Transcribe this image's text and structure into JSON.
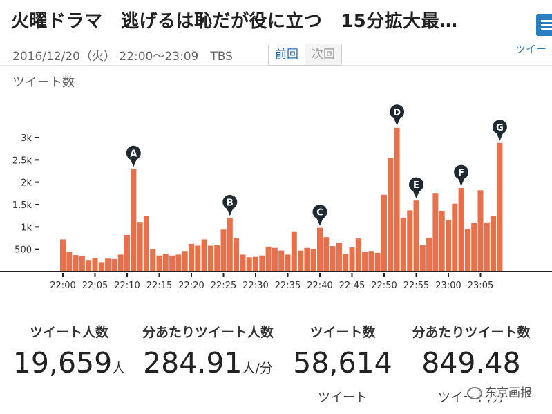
{
  "header": {
    "title": "火曜ドラマ　逃げるは恥だが役に立つ　15分拡大最…",
    "broadcast_info": "2016/12/20（火） 22:00～23:09　TBS",
    "prev_label": "前回",
    "next_label": "次回",
    "side_tab_label": "ツイー",
    "list_icon": "list-icon"
  },
  "chart_data": {
    "type": "bar",
    "title": "ツイート数",
    "color": "#e8704a",
    "y_ticks": [
      "500",
      "1k",
      "1.5k",
      "2k",
      "2.5k",
      "3k"
    ],
    "y_tick_values": [
      500,
      1000,
      1500,
      2000,
      2500,
      3000
    ],
    "ylim": [
      0,
      3500
    ],
    "x_ticks": [
      "22:00",
      "22:05",
      "22:10",
      "22:15",
      "22:20",
      "22:25",
      "22:30",
      "22:35",
      "22:40",
      "22:45",
      "22:50",
      "22:55",
      "23:00",
      "23:05"
    ],
    "x_tick_minutes": [
      0,
      5,
      10,
      15,
      20,
      25,
      30,
      35,
      40,
      45,
      50,
      55,
      60,
      65
    ],
    "values": [
      720,
      450,
      370,
      340,
      260,
      300,
      210,
      290,
      280,
      380,
      820,
      2300,
      1110,
      1250,
      510,
      360,
      400,
      360,
      380,
      460,
      620,
      580,
      720,
      580,
      590,
      940,
      1200,
      750,
      380,
      320,
      330,
      360,
      560,
      530,
      470,
      380,
      900,
      470,
      530,
      510,
      980,
      770,
      570,
      650,
      400,
      540,
      740,
      440,
      460,
      420,
      1720,
      2550,
      3220,
      1190,
      1370,
      1590,
      590,
      760,
      1760,
      1360,
      1160,
      1520,
      1870,
      950,
      1090,
      1820,
      1100,
      1250,
      2880
    ],
    "markers": [
      {
        "label": "A",
        "minute": 11
      },
      {
        "label": "B",
        "minute": 26
      },
      {
        "label": "C",
        "minute": 40
      },
      {
        "label": "D",
        "minute": 52
      },
      {
        "label": "E",
        "minute": 55
      },
      {
        "label": "F",
        "minute": 62
      },
      {
        "label": "G",
        "minute": 68
      }
    ]
  },
  "stats": [
    {
      "label": "ツイート人数",
      "value": "19,659",
      "unit": "人",
      "sub": ""
    },
    {
      "label": "分あたりツイート人数",
      "value": "284.91",
      "unit": "人/分",
      "sub": ""
    },
    {
      "label": "ツイート数",
      "value": "58,614",
      "unit": "",
      "sub": "ツイート"
    },
    {
      "label": "分あたりツイート数",
      "value": "849.48",
      "unit": "",
      "sub": "ツイート/分"
    }
  ],
  "watermark": "东京画报"
}
